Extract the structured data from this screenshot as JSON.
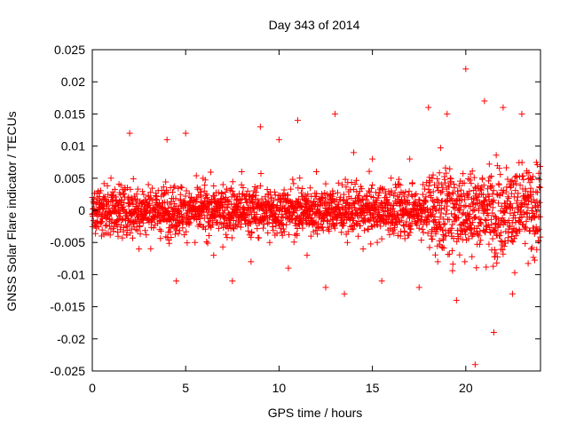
{
  "chart_data": {
    "type": "scatter",
    "title": "Day 343 of 2014",
    "xlabel": "GPS time / hours",
    "ylabel": "GNSS Solar Flare indicator / TECUs",
    "xlim": [
      0,
      24
    ],
    "ylim": [
      -0.025,
      0.025
    ],
    "x_ticks": [
      "0",
      "5",
      "10",
      "15",
      "20"
    ],
    "y_ticks": [
      "0.025",
      "0.02",
      "0.015",
      "0.01",
      "0.005",
      "0",
      "-0.005",
      "-0.01",
      "-0.015",
      "-0.02",
      "-0.025"
    ],
    "marker": "plus",
    "color": "#ff0000",
    "grid": false,
    "legend": "none",
    "series": [
      {
        "points_note": "approximately 2880 points sampled every 30 s; dense band centered on 0, mostly within ±0.007 TECU, wider spread (±0.02) after hour 18",
        "x": [
          0.0,
          0.5,
          1.0,
          1.5,
          2.0,
          2.5,
          3.0,
          3.5,
          4.0,
          4.5,
          5.0,
          5.5,
          6.0,
          6.5,
          7.0,
          7.5,
          8.0,
          8.5,
          9.0,
          9.5,
          10.0,
          10.5,
          11.0,
          11.5,
          12.0,
          12.5,
          13.0,
          13.5,
          14.0,
          14.5,
          15.0,
          15.5,
          16.0,
          16.5,
          17.0,
          17.5,
          18.0,
          18.5,
          19.0,
          19.5,
          20.0,
          20.5,
          21.0,
          21.5,
          22.0,
          22.5,
          23.0,
          23.5
        ],
        "y": [
          0.002,
          -0.004,
          0.005,
          -0.003,
          0.012,
          -0.006,
          0.004,
          -0.002,
          0.011,
          -0.011,
          0.012,
          -0.005,
          0.003,
          -0.007,
          0.004,
          -0.011,
          0.006,
          -0.008,
          0.013,
          -0.005,
          0.011,
          -0.009,
          0.014,
          -0.007,
          0.006,
          -0.012,
          0.015,
          -0.013,
          0.009,
          -0.006,
          0.008,
          -0.011,
          0.005,
          -0.004,
          0.008,
          -0.012,
          0.016,
          -0.008,
          0.015,
          -0.014,
          0.022,
          -0.024,
          0.017,
          -0.019,
          0.016,
          -0.013,
          0.015,
          -0.006
        ]
      }
    ]
  }
}
